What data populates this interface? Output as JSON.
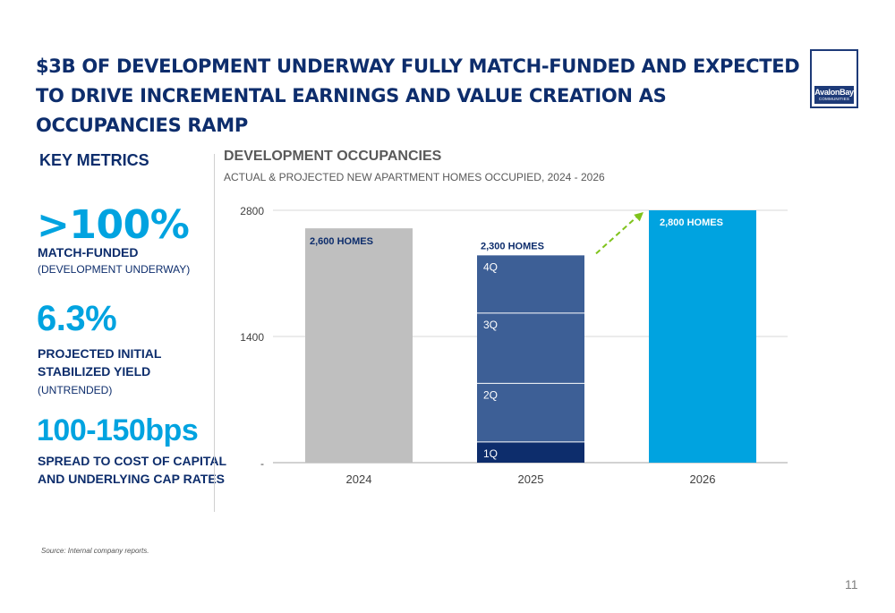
{
  "title": "$3B OF DEVELOPMENT UNDERWAY FULLY MATCH-FUNDED AND EXPECTED TO DRIVE INCREMENTAL EARNINGS AND VALUE CREATION AS OCCUPANCIES RAMP",
  "logo": {
    "name": "AvalonBay",
    "sub": "COMMUNITIES"
  },
  "key_metrics": {
    "heading": "KEY METRICS",
    "items": [
      {
        "value": ">100%",
        "label_lines": [
          "MATCH-FUNDED"
        ],
        "note": "(DEVELOPMENT UNDERWAY)"
      },
      {
        "value": "6.3%",
        "label_lines": [
          "PROJECTED INITIAL",
          "STABILIZED YIELD"
        ],
        "note": "(UNTRENDED)"
      },
      {
        "value": "100-150bps",
        "label_lines": [
          "SPREAD TO COST OF CAPITAL",
          "AND UNDERLYING CAP RATES"
        ],
        "note": ""
      }
    ]
  },
  "colors": {
    "navy": "#0d2d6c",
    "accent": "#00a3e0",
    "gray_bar": "#bfbfbf",
    "q_blue": "#3d5f96",
    "q1_navy": "#0d2d6c",
    "arrow": "#7fc31c"
  },
  "chart_data": {
    "type": "bar",
    "title": "DEVELOPMENT OCCUPANCIES",
    "subtitle": "ACTUAL & PROJECTED NEW APARTMENT HOMES OCCUPIED, 2024 - 2026",
    "categories": [
      "2024",
      "2025",
      "2026"
    ],
    "values": [
      2600,
      2300,
      2800
    ],
    "data_labels": [
      "2,600 HOMES",
      "2,300 HOMES",
      "2,800 HOMES"
    ],
    "stacked_2025": [
      {
        "name": "1Q",
        "value": 230
      },
      {
        "name": "2Q",
        "value": 650
      },
      {
        "name": "3Q",
        "value": 780
      },
      {
        "name": "4Q",
        "value": 640
      }
    ],
    "yticks": [
      "-",
      "1400",
      "2800"
    ],
    "ylim": [
      0,
      2800
    ],
    "grid": true,
    "arrow": {
      "from": "2025",
      "to": "2026"
    }
  },
  "source": "Source:  Internal company reports.",
  "page_number": "11"
}
